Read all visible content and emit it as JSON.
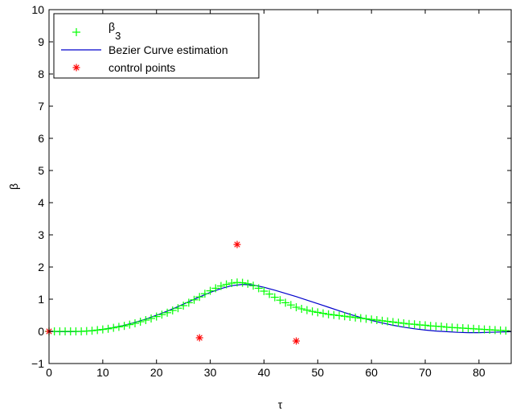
{
  "chart_data": {
    "type": "line",
    "xlabel": "τ",
    "ylabel": "β",
    "xlim": [
      0,
      86
    ],
    "ylim": [
      -1,
      10
    ],
    "xticks": [
      0,
      10,
      20,
      30,
      40,
      50,
      60,
      70,
      80
    ],
    "yticks": [
      -1,
      0,
      1,
      2,
      3,
      4,
      5,
      6,
      7,
      8,
      9,
      10
    ],
    "grid": false,
    "legend_position": "top-left",
    "colors": {
      "markers": "#00ff00",
      "curve": "#0000cc",
      "control": "#ff0000"
    },
    "legend": [
      {
        "label": "β",
        "sub": "3",
        "marker": "plus"
      },
      {
        "label": "Bezier Curve estimation",
        "marker": "line"
      },
      {
        "label": "control points",
        "marker": "star"
      }
    ],
    "series": [
      {
        "name": "β3",
        "style": "plus-markers",
        "points": [
          [
            0,
            0.0
          ],
          [
            1,
            0.0
          ],
          [
            2,
            0.0
          ],
          [
            3,
            0.0
          ],
          [
            4,
            0.0
          ],
          [
            5,
            0.0
          ],
          [
            6,
            0.0
          ],
          [
            7,
            0.01
          ],
          [
            8,
            0.02
          ],
          [
            9,
            0.04
          ],
          [
            10,
            0.06
          ],
          [
            11,
            0.08
          ],
          [
            12,
            0.11
          ],
          [
            13,
            0.14
          ],
          [
            14,
            0.17
          ],
          [
            15,
            0.21
          ],
          [
            16,
            0.25
          ],
          [
            17,
            0.3
          ],
          [
            18,
            0.35
          ],
          [
            19,
            0.4
          ],
          [
            20,
            0.46
          ],
          [
            21,
            0.52
          ],
          [
            22,
            0.58
          ],
          [
            23,
            0.65
          ],
          [
            24,
            0.72
          ],
          [
            25,
            0.8
          ],
          [
            26,
            0.89
          ],
          [
            27,
            0.98
          ],
          [
            28,
            1.07
          ],
          [
            29,
            1.17
          ],
          [
            30,
            1.26
          ],
          [
            31,
            1.34
          ],
          [
            32,
            1.41
          ],
          [
            33,
            1.46
          ],
          [
            34,
            1.5
          ],
          [
            35,
            1.52
          ],
          [
            36,
            1.51
          ],
          [
            37,
            1.48
          ],
          [
            38,
            1.42
          ],
          [
            39,
            1.34
          ],
          [
            40,
            1.25
          ],
          [
            41,
            1.16
          ],
          [
            42,
            1.06
          ],
          [
            43,
            0.97
          ],
          [
            44,
            0.89
          ],
          [
            45,
            0.82
          ],
          [
            46,
            0.75
          ],
          [
            47,
            0.7
          ],
          [
            48,
            0.66
          ],
          [
            49,
            0.62
          ],
          [
            50,
            0.59
          ],
          [
            51,
            0.56
          ],
          [
            52,
            0.53
          ],
          [
            53,
            0.51
          ],
          [
            54,
            0.49
          ],
          [
            55,
            0.47
          ],
          [
            56,
            0.45
          ],
          [
            57,
            0.43
          ],
          [
            58,
            0.41
          ],
          [
            59,
            0.39
          ],
          [
            60,
            0.37
          ],
          [
            61,
            0.35
          ],
          [
            62,
            0.33
          ],
          [
            63,
            0.31
          ],
          [
            64,
            0.29
          ],
          [
            65,
            0.27
          ],
          [
            66,
            0.25
          ],
          [
            67,
            0.23
          ],
          [
            68,
            0.22
          ],
          [
            69,
            0.2
          ],
          [
            70,
            0.19
          ],
          [
            71,
            0.17
          ],
          [
            72,
            0.16
          ],
          [
            73,
            0.15
          ],
          [
            74,
            0.13
          ],
          [
            75,
            0.12
          ],
          [
            76,
            0.11
          ],
          [
            77,
            0.1
          ],
          [
            78,
            0.09
          ],
          [
            79,
            0.08
          ],
          [
            80,
            0.07
          ],
          [
            81,
            0.06
          ],
          [
            82,
            0.05
          ],
          [
            83,
            0.04
          ],
          [
            84,
            0.03
          ],
          [
            85,
            0.02
          ]
        ]
      },
      {
        "name": "Bezier Curve estimation",
        "style": "line",
        "points": [
          [
            0,
            0.0
          ],
          [
            2,
            -0.01
          ],
          [
            4,
            -0.01
          ],
          [
            6,
            0.0
          ],
          [
            8,
            0.02
          ],
          [
            10,
            0.06
          ],
          [
            12,
            0.12
          ],
          [
            14,
            0.19
          ],
          [
            16,
            0.28
          ],
          [
            18,
            0.38
          ],
          [
            20,
            0.5
          ],
          [
            22,
            0.63
          ],
          [
            24,
            0.77
          ],
          [
            26,
            0.92
          ],
          [
            28,
            1.07
          ],
          [
            30,
            1.21
          ],
          [
            32,
            1.33
          ],
          [
            34,
            1.42
          ],
          [
            36,
            1.46
          ],
          [
            38,
            1.44
          ],
          [
            40,
            1.37
          ],
          [
            42,
            1.28
          ],
          [
            44,
            1.18
          ],
          [
            46,
            1.08
          ],
          [
            48,
            0.97
          ],
          [
            50,
            0.86
          ],
          [
            52,
            0.75
          ],
          [
            54,
            0.64
          ],
          [
            56,
            0.53
          ],
          [
            58,
            0.43
          ],
          [
            60,
            0.34
          ],
          [
            62,
            0.26
          ],
          [
            64,
            0.19
          ],
          [
            66,
            0.13
          ],
          [
            68,
            0.08
          ],
          [
            70,
            0.04
          ],
          [
            72,
            0.01
          ],
          [
            74,
            -0.01
          ],
          [
            76,
            -0.03
          ],
          [
            78,
            -0.04
          ],
          [
            80,
            -0.04
          ],
          [
            82,
            -0.03
          ],
          [
            84,
            -0.02
          ],
          [
            86,
            -0.01
          ]
        ]
      },
      {
        "name": "control points",
        "style": "star-markers",
        "points": [
          [
            0,
            0.0
          ],
          [
            28,
            -0.2
          ],
          [
            35,
            2.7
          ],
          [
            46,
            -0.3
          ]
        ]
      }
    ]
  }
}
